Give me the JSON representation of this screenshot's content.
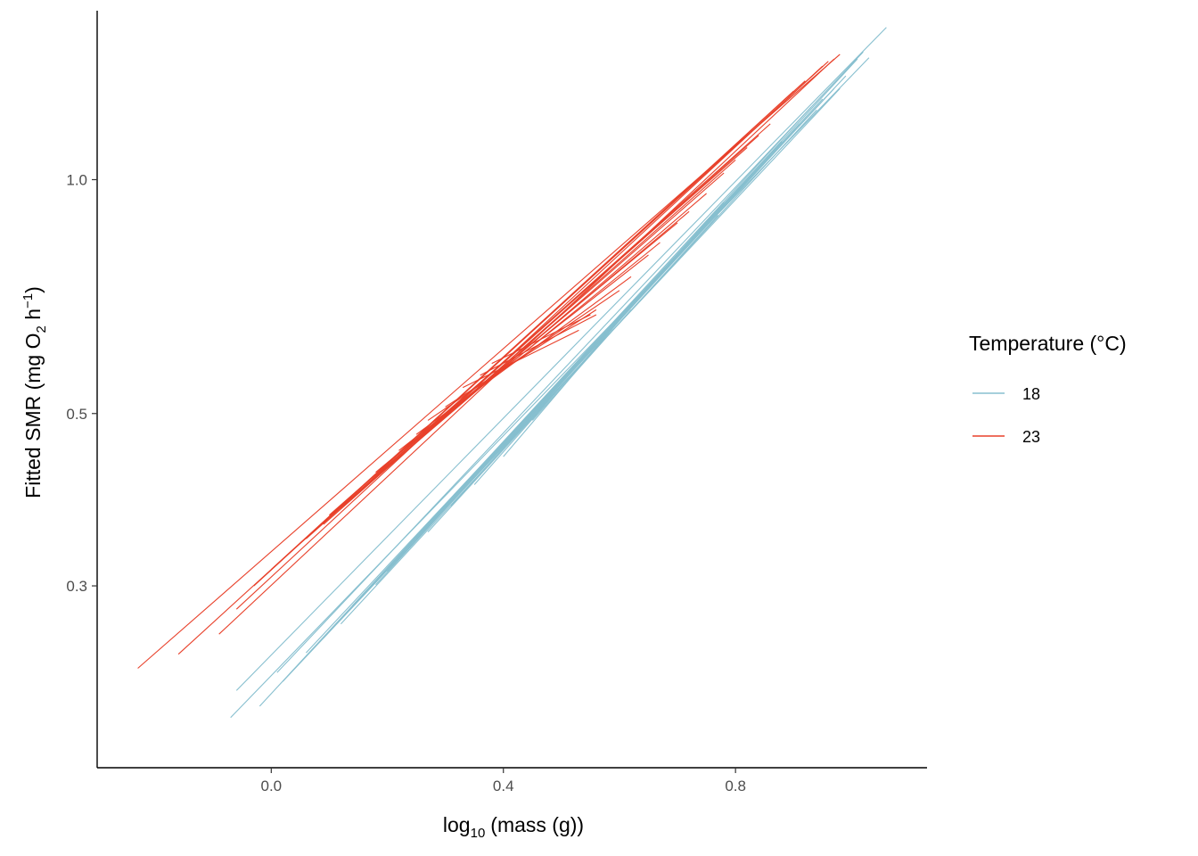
{
  "chart_data": {
    "type": "line",
    "xlabel": {
      "prefix": "log",
      "sub": "10",
      "rest": "(mass (g))"
    },
    "ylabel": {
      "part1": "Fitted SMR (mg O",
      "sub": "2",
      "part2": " h",
      "sup": "−1",
      "part3": ")"
    },
    "y_scale": "log",
    "xlim": [
      -0.3,
      1.13
    ],
    "ylim": [
      0.175,
      1.65
    ],
    "x_ticks": [
      {
        "value": 0.0,
        "label": "0.0"
      },
      {
        "value": 0.4,
        "label": "0.4"
      },
      {
        "value": 0.8,
        "label": "0.8"
      }
    ],
    "y_ticks": [
      {
        "value": 0.3,
        "label": "0.3"
      },
      {
        "value": 0.5,
        "label": "0.5"
      },
      {
        "value": 1.0,
        "label": "1.0"
      }
    ],
    "grid": false,
    "legend": {
      "title": "Temperature (°C)",
      "placement": "right",
      "entries": [
        {
          "label": "18",
          "color": "#87bfcf"
        },
        {
          "label": "23",
          "color": "#e8402a"
        }
      ]
    },
    "series": [
      {
        "name": "18",
        "color": "#87bfcf",
        "lines": [
          {
            "x": [
              -0.07,
              1.03
            ],
            "y": [
              0.203,
              1.435
            ]
          },
          {
            "x": [
              -0.06,
              1.06
            ],
            "y": [
              0.22,
              1.57
            ]
          },
          {
            "x": [
              -0.02,
              1.01
            ],
            "y": [
              0.21,
              1.43
            ]
          },
          {
            "x": [
              0.01,
              1.02
            ],
            "y": [
              0.232,
              1.46
            ]
          },
          {
            "x": [
              0.02,
              0.98
            ],
            "y": [
              0.226,
              1.31
            ]
          },
          {
            "x": [
              0.06,
              0.99
            ],
            "y": [
              0.246,
              1.36
            ]
          },
          {
            "x": [
              0.09,
              0.95
            ],
            "y": [
              0.257,
              1.27
            ]
          },
          {
            "x": [
              0.1,
              0.97
            ],
            "y": [
              0.262,
              1.31
            ]
          },
          {
            "x": [
              0.12,
              0.94
            ],
            "y": [
              0.268,
              1.23
            ]
          },
          {
            "x": [
              0.13,
              0.91
            ],
            "y": [
              0.277,
              1.18
            ]
          },
          {
            "x": [
              0.14,
              0.93
            ],
            "y": [
              0.283,
              1.24
            ]
          },
          {
            "x": [
              0.16,
              0.88
            ],
            "y": [
              0.293,
              1.12
            ]
          },
          {
            "x": [
              0.18,
              0.86
            ],
            "y": [
              0.301,
              1.07
            ]
          },
          {
            "x": [
              0.2,
              0.83
            ],
            "y": [
              0.313,
              1.02
            ]
          },
          {
            "x": [
              0.22,
              0.82
            ],
            "y": [
              0.325,
              1.0
            ]
          },
          {
            "x": [
              0.25,
              0.8
            ],
            "y": [
              0.345,
              0.96
            ]
          },
          {
            "x": [
              0.27,
              0.77
            ],
            "y": [
              0.352,
              0.9
            ]
          },
          {
            "x": [
              0.29,
              0.75
            ],
            "y": [
              0.37,
              0.875
            ]
          },
          {
            "x": [
              0.33,
              0.7
            ],
            "y": [
              0.4,
              0.8
            ]
          },
          {
            "x": [
              0.35,
              0.66
            ],
            "y": [
              0.405,
              0.74
            ]
          },
          {
            "x": [
              0.37,
              0.72
            ],
            "y": [
              0.43,
              0.83
            ]
          },
          {
            "x": [
              0.4,
              0.63
            ],
            "y": [
              0.44,
              0.7
            ]
          },
          {
            "x": [
              0.45,
              0.62
            ],
            "y": [
              0.49,
              0.68
            ]
          },
          {
            "x": [
              0.31,
              0.78
            ],
            "y": [
              0.38,
              0.935
            ]
          }
        ]
      },
      {
        "name": "23",
        "color": "#e8402a",
        "lines": [
          {
            "x": [
              -0.23,
              0.98
            ],
            "y": [
              0.235,
              1.45
            ]
          },
          {
            "x": [
              -0.16,
              0.96
            ],
            "y": [
              0.245,
              1.42
            ]
          },
          {
            "x": [
              -0.09,
              0.97
            ],
            "y": [
              0.26,
              1.43
            ]
          },
          {
            "x": [
              -0.06,
              0.95
            ],
            "y": [
              0.28,
              1.4
            ]
          },
          {
            "x": [
              -0.03,
              0.92
            ],
            "y": [
              0.3,
              1.34
            ]
          },
          {
            "x": [
              0.0,
              0.9
            ],
            "y": [
              0.315,
              1.3
            ]
          },
          {
            "x": [
              0.03,
              0.86
            ],
            "y": [
              0.33,
              1.18
            ]
          },
          {
            "x": [
              0.06,
              0.84
            ],
            "y": [
              0.345,
              1.14
            ]
          },
          {
            "x": [
              0.09,
              0.8
            ],
            "y": [
              0.36,
              1.06
            ]
          },
          {
            "x": [
              0.1,
              0.82
            ],
            "y": [
              0.37,
              1.1
            ]
          },
          {
            "x": [
              0.12,
              0.78
            ],
            "y": [
              0.378,
              1.02
            ]
          },
          {
            "x": [
              0.14,
              0.75
            ],
            "y": [
              0.39,
              0.96
            ]
          },
          {
            "x": [
              0.16,
              0.72
            ],
            "y": [
              0.405,
              0.91
            ]
          },
          {
            "x": [
              0.18,
              0.7
            ],
            "y": [
              0.42,
              0.88
            ]
          },
          {
            "x": [
              0.2,
              0.67
            ],
            "y": [
              0.432,
              0.83
            ]
          },
          {
            "x": [
              0.22,
              0.65
            ],
            "y": [
              0.448,
              0.8
            ]
          },
          {
            "x": [
              0.25,
              0.62
            ],
            "y": [
              0.47,
              0.75
            ]
          },
          {
            "x": [
              0.27,
              0.6
            ],
            "y": [
              0.49,
              0.72
            ]
          },
          {
            "x": [
              0.3,
              0.56
            ],
            "y": [
              0.51,
              0.68
            ]
          },
          {
            "x": [
              0.33,
              0.53
            ],
            "y": [
              0.54,
              0.64
            ]
          },
          {
            "x": [
              0.36,
              0.56
            ],
            "y": [
              0.56,
              0.67
            ]
          },
          {
            "x": [
              0.38,
              0.55
            ],
            "y": [
              0.58,
              0.67
            ]
          }
        ]
      }
    ]
  }
}
